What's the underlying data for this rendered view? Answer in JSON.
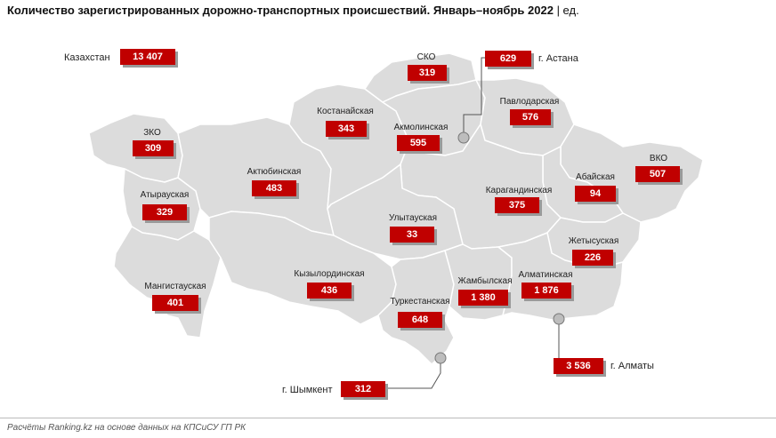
{
  "title": "Количество зарегистрированных дорожно-транспортных происшествий. Январь–ноябрь 2022",
  "unit": "| ед.",
  "source": "Расчёты Ranking.kz на основе данных на КПСиСУ ГП РК",
  "colors": {
    "box": "#c00000",
    "map_fill": "#dcdcdc",
    "map_stroke": "#ffffff",
    "connector": "#555555"
  },
  "national": {
    "label": "Казахстан",
    "value": "13 407"
  },
  "regions": [
    {
      "name": "ЗКО",
      "value": "309"
    },
    {
      "name": "Атырауская",
      "value": "329"
    },
    {
      "name": "Мангистауская",
      "value": "401"
    },
    {
      "name": "Актюбинская",
      "value": "483"
    },
    {
      "name": "Костанайская",
      "value": "343"
    },
    {
      "name": "СКО",
      "value": "319"
    },
    {
      "name": "Акмолинская",
      "value": "595"
    },
    {
      "name": "Павлодарская",
      "value": "576"
    },
    {
      "name": "ВКО",
      "value": "507"
    },
    {
      "name": "Абайская",
      "value": "94"
    },
    {
      "name": "Карагандинская",
      "value": "375"
    },
    {
      "name": "Улытауская",
      "value": "33"
    },
    {
      "name": "Жетысуская",
      "value": "226"
    },
    {
      "name": "Кызылординская",
      "value": "436"
    },
    {
      "name": "Туркестанская",
      "value": "648"
    },
    {
      "name": "Жамбылская",
      "value": "1 380"
    },
    {
      "name": "Алматинская",
      "value": "1 876"
    }
  ],
  "cities": [
    {
      "name": "г. Астана",
      "value": "629"
    },
    {
      "name": "г. Алматы",
      "value": "3 536"
    },
    {
      "name": "г. Шымкент",
      "value": "312"
    }
  ]
}
